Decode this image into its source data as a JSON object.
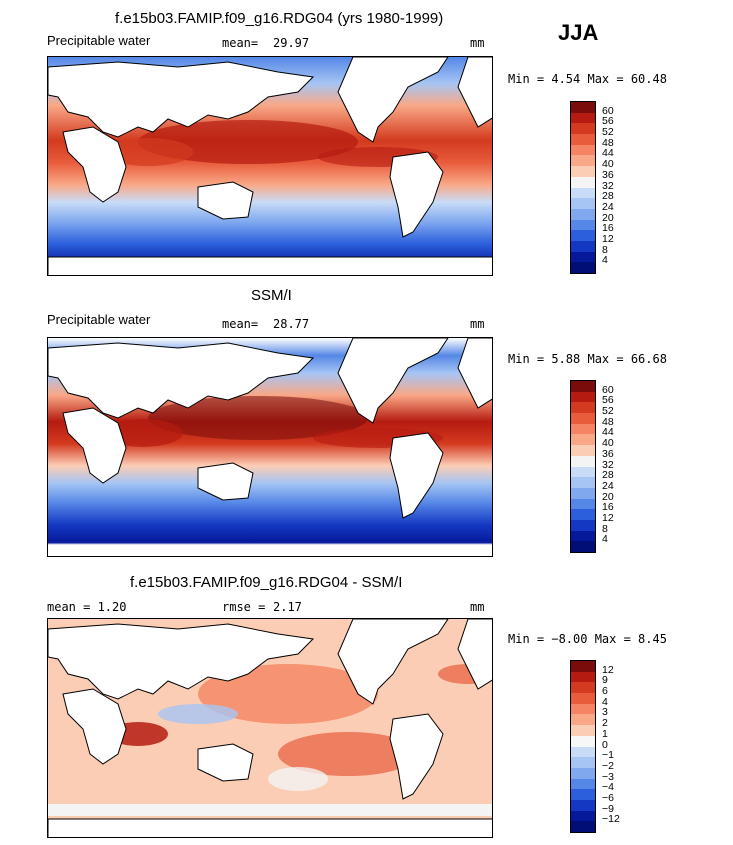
{
  "season": "JJA",
  "panels": [
    {
      "title": "f.e15b03.FAMIP.f09_g16.RDG04 (yrs 1980-1999)",
      "left_label": "Precipitable water",
      "mean_label": "mean=",
      "mean_value": "29.97",
      "unit": "mm",
      "range_text": "Min =    4.54 Max =   60.48",
      "colorbar_labels": [
        "60",
        "56",
        "52",
        "48",
        "44",
        "40",
        "36",
        "32",
        "28",
        "24",
        "20",
        "16",
        "12",
        "8",
        "4"
      ]
    },
    {
      "title": "SSM/I",
      "left_label": "Precipitable water",
      "mean_label": "mean=",
      "mean_value": "28.77",
      "unit": "mm",
      "range_text": "Min =    5.88 Max =   66.68",
      "colorbar_labels": [
        "60",
        "56",
        "52",
        "48",
        "44",
        "40",
        "36",
        "32",
        "28",
        "24",
        "20",
        "16",
        "12",
        "8",
        "4"
      ]
    },
    {
      "title": "f.e15b03.FAMIP.f09_g16.RDG04 - SSM/I",
      "left_label": "mean =    1.20",
      "mean_label": "rmse =",
      "mean_value": "2.17",
      "unit": "mm",
      "range_text": "Min =  −8.00 Max =    8.45",
      "colorbar_labels": [
        "12",
        "9",
        "6",
        "4",
        "3",
        "2",
        "1",
        "0",
        "−1",
        "−2",
        "−3",
        "−4",
        "−6",
        "−9",
        "−12"
      ]
    }
  ],
  "colors": {
    "abs_scale": [
      "#7a0c0c",
      "#b51b10",
      "#d33a1f",
      "#e85c3c",
      "#f48463",
      "#f9a887",
      "#fccdb5",
      "#f4f4f4",
      "#c8dcf7",
      "#a6c5f4",
      "#7fa8ef",
      "#5587e6",
      "#2c5fdc",
      "#1438c2",
      "#06199b",
      "#000e76"
    ],
    "diff_scale": [
      "#7a0c0c",
      "#b51b10",
      "#d33a1f",
      "#e85c3c",
      "#f48463",
      "#f9a887",
      "#fccdb5",
      "#f7f7f7",
      "#c8dcf7",
      "#a6c5f4",
      "#7fa8ef",
      "#5587e6",
      "#2c5fdc",
      "#1438c2",
      "#06199b",
      "#000e76"
    ],
    "land": "#ffffff",
    "coast": "#000000"
  }
}
